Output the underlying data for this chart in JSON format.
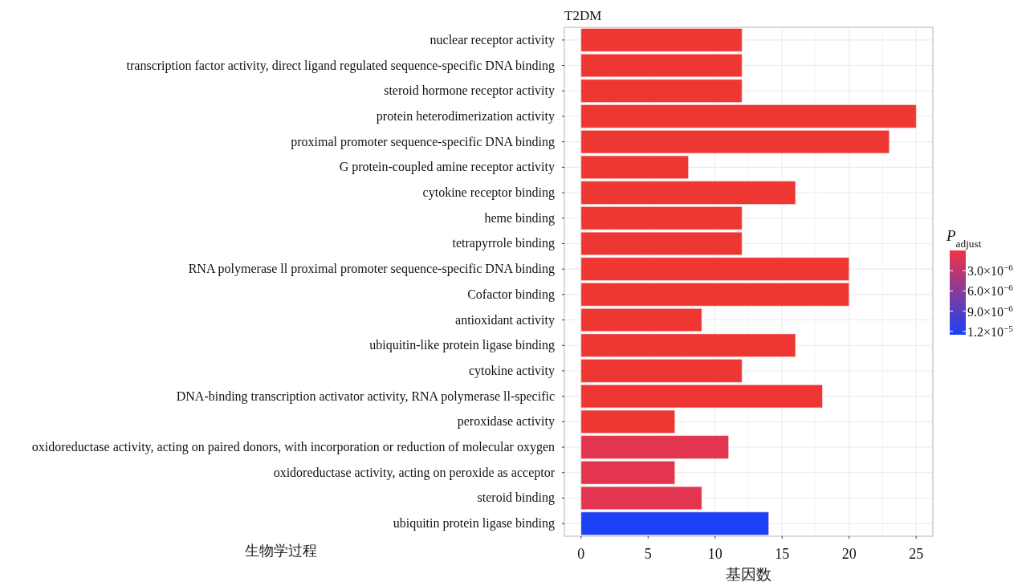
{
  "chart_data": {
    "type": "bar",
    "orientation": "horizontal",
    "title": "T2DM",
    "xlabel": "基因数",
    "clabel": "P$_{adjust}$",
    "categories": [
      "nuclear receptor activity",
      "transcription factor activity, direct ligand regulated sequence-specific DNA binding",
      "steroid hormone receptor activity",
      "protein heterodimerization activity",
      "proximal promoter sequence-specific DNA binding",
      "G protein-coupled amine receptor activity",
      "cytokine receptor binding",
      "heme binding",
      "tetrapyrrole binding",
      "RNA polymerase ll proximal promoter sequence-specific DNA binding",
      "Cofactor binding",
      "antioxidant activity",
      "ubiquitin-like protein ligase binding",
      "cytokine activity",
      "DNA-binding transcription activator activity, RNA polymerase ll-specific",
      "peroxidase activity",
      "oxidoreductase activity, acting on paired donors, with incorporation or reduction of molecular oxygen",
      "oxidoreductase activity, acting on peroxide as acceptor",
      "steroid binding",
      "ubiquitin protein ligase binding"
    ],
    "values": [
      12,
      12,
      12,
      25,
      23,
      8,
      16,
      12,
      12,
      20,
      20,
      9,
      16,
      12,
      18,
      7,
      11,
      7,
      9,
      14
    ],
    "cvalues": [
      1e-07,
      1e-07,
      1e-07,
      1e-07,
      1e-07,
      1e-07,
      1e-07,
      1e-07,
      1e-07,
      1e-07,
      1e-07,
      1e-07,
      1e-07,
      1e-07,
      1e-07,
      1e-07,
      7e-07,
      7e-07,
      7e-07,
      1.25e-05
    ],
    "colors": [
      "#ee3733",
      "#ee3733",
      "#ee3733",
      "#ee3733",
      "#ee3733",
      "#ee3733",
      "#ee3733",
      "#ee3733",
      "#ee3733",
      "#ee3733",
      "#ee3733",
      "#ee3733",
      "#ee3733",
      "#ee3733",
      "#ee3733",
      "#ee3733",
      "#e3354f",
      "#e3354f",
      "#e3354f",
      "#1a41f5"
    ],
    "clim": [
      0,
      1.25e-05
    ],
    "cticks": [
      {
        "value": 3e-06,
        "label": "3.0×10$^{−6}$"
      },
      {
        "value": 6e-06,
        "label": "6.0×10$^{−6}$"
      },
      {
        "value": 9e-06,
        "label": "9.0×10$^{−6}$"
      },
      {
        "value": 1.2e-05,
        "label": "1.2×10$^{−5}$"
      }
    ],
    "xlim": [
      -1.25,
      26.25
    ],
    "xticks": [
      0,
      5,
      10,
      15,
      20,
      25
    ],
    "grid": true,
    "annotations": [
      "生物学过程"
    ]
  }
}
